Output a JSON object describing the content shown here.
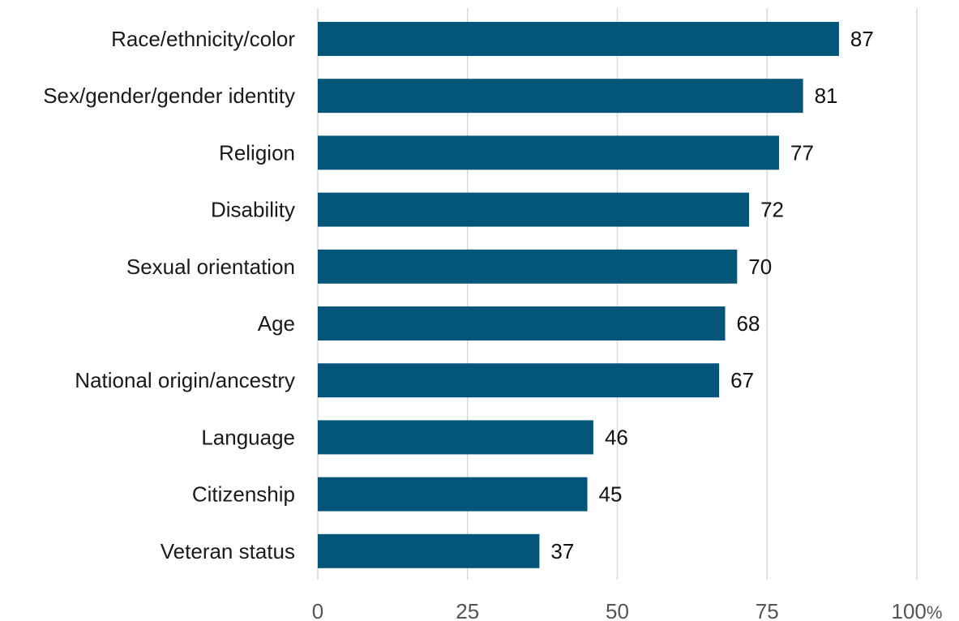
{
  "chart_data": {
    "type": "bar",
    "orientation": "horizontal",
    "categories": [
      "Race/ethnicity/color",
      "Sex/gender/gender identity",
      "Religion",
      "Disability",
      "Sexual orientation",
      "Age",
      "National origin/ancestry",
      "Language",
      "Citizenship",
      "Veteran status"
    ],
    "values": [
      87,
      81,
      77,
      72,
      70,
      68,
      67,
      46,
      45,
      37
    ],
    "value_labels": [
      "87",
      "81",
      "77",
      "72",
      "70",
      "68",
      "67",
      "46",
      "45",
      "37"
    ],
    "title": "",
    "xlabel": "",
    "ylabel": "",
    "xlim": [
      0,
      100
    ],
    "x_ticks": [
      0,
      25,
      50,
      75,
      100
    ],
    "x_tick_labels": [
      "0",
      "25",
      "50",
      "75",
      "100"
    ],
    "x_tick_suffix": "%",
    "grid": "vertical",
    "bar_color": "#03557a",
    "grid_color": "#d9d9d9"
  }
}
